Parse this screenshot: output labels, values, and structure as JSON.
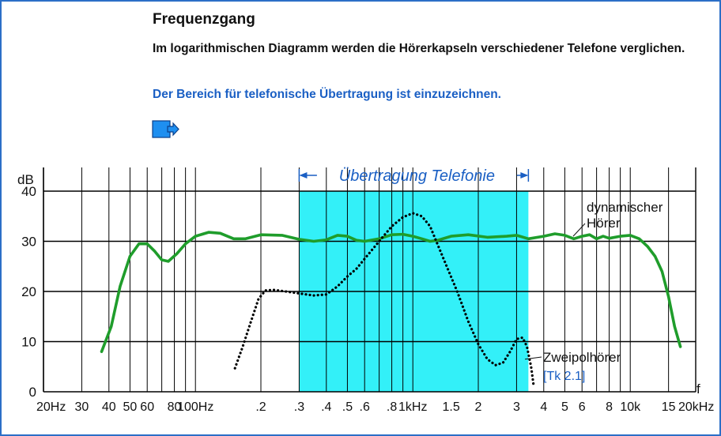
{
  "header": {
    "title": "Frequenzgang",
    "intro": "Im logarithmischen Diagramm werden die Hörerkapseln verschiedener Telefone verglichen.",
    "task": "Der Bereich für telefonische Übertragung ist einzuzeichnen."
  },
  "nav": {
    "next_icon": "arrow-right-icon"
  },
  "colors": {
    "band": "#33f0f8",
    "green": "#1f9d2b",
    "accent": "#1a5fc4",
    "grid": "#000000"
  },
  "chart_data": {
    "type": "line",
    "xscale": "log",
    "xlim": [
      20,
      20000
    ],
    "ylim": [
      0,
      40
    ],
    "yunit_label": "dB",
    "xunit_label": "f",
    "y_ticks": [
      {
        "v": 0,
        "label": "0"
      },
      {
        "v": 10,
        "label": "10"
      },
      {
        "v": 20,
        "label": "20"
      },
      {
        "v": 30,
        "label": "30"
      },
      {
        "v": 40,
        "label": "40"
      }
    ],
    "x_ticks": [
      {
        "f": 20,
        "label": "20Hz"
      },
      {
        "f": 30,
        "label": "30"
      },
      {
        "f": 40,
        "label": "40"
      },
      {
        "f": 50,
        "label": "50"
      },
      {
        "f": 60,
        "label": "60"
      },
      {
        "f": 80,
        "label": "80"
      },
      {
        "f": 100,
        "label": "100Hz"
      },
      {
        "f": 200,
        "label": ".2"
      },
      {
        "f": 300,
        "label": ".3"
      },
      {
        "f": 400,
        "label": ".4"
      },
      {
        "f": 500,
        "label": ".5"
      },
      {
        "f": 600,
        "label": ".6"
      },
      {
        "f": 800,
        "label": ".8"
      },
      {
        "f": 1000,
        "label": "1kHz"
      },
      {
        "f": 1500,
        "label": "1.5"
      },
      {
        "f": 2000,
        "label": "2"
      },
      {
        "f": 3000,
        "label": "3"
      },
      {
        "f": 4000,
        "label": "4"
      },
      {
        "f": 5000,
        "label": "5"
      },
      {
        "f": 6000,
        "label": "6"
      },
      {
        "f": 8000,
        "label": "8"
      },
      {
        "f": 10000,
        "label": "10k"
      },
      {
        "f": 15000,
        "label": "15"
      },
      {
        "f": 20000,
        "label": "20kHz"
      }
    ],
    "band": {
      "from": 300,
      "to": 3400,
      "label": "Übertragung Telefonie"
    },
    "series": [
      {
        "name": "dynamischer Hörer",
        "label_lines": [
          "dynamischer",
          "Hörer"
        ],
        "style": "solid",
        "color": "#1f9d2b",
        "points": [
          [
            37,
            8
          ],
          [
            41,
            13
          ],
          [
            45,
            21
          ],
          [
            50,
            27
          ],
          [
            55,
            29.5
          ],
          [
            60,
            29.5
          ],
          [
            65,
            28
          ],
          [
            70,
            26.3
          ],
          [
            75,
            26
          ],
          [
            82,
            27.5
          ],
          [
            90,
            29.5
          ],
          [
            100,
            31
          ],
          [
            115,
            31.8
          ],
          [
            130,
            31.6
          ],
          [
            150,
            30.5
          ],
          [
            170,
            30.5
          ],
          [
            200,
            31.3
          ],
          [
            250,
            31.2
          ],
          [
            300,
            30.4
          ],
          [
            350,
            30
          ],
          [
            400,
            30.3
          ],
          [
            450,
            31.2
          ],
          [
            500,
            31
          ],
          [
            550,
            30.2
          ],
          [
            600,
            30
          ],
          [
            700,
            30.5
          ],
          [
            800,
            31.3
          ],
          [
            900,
            31.4
          ],
          [
            1000,
            31
          ],
          [
            1100,
            30.5
          ],
          [
            1200,
            30
          ],
          [
            1300,
            30.2
          ],
          [
            1500,
            31
          ],
          [
            1800,
            31.3
          ],
          [
            2200,
            30.8
          ],
          [
            2700,
            31
          ],
          [
            3000,
            31.2
          ],
          [
            3400,
            30.5
          ],
          [
            4000,
            31
          ],
          [
            4500,
            31.5
          ],
          [
            5000,
            31.2
          ],
          [
            5500,
            30.5
          ],
          [
            6000,
            31
          ],
          [
            6500,
            31.3
          ],
          [
            7000,
            30.5
          ],
          [
            7500,
            31
          ],
          [
            8000,
            30.6
          ],
          [
            9000,
            31
          ],
          [
            10000,
            31.2
          ],
          [
            11000,
            30.5
          ],
          [
            12000,
            29
          ],
          [
            13000,
            27
          ],
          [
            14000,
            24
          ],
          [
            15000,
            19
          ],
          [
            16000,
            13
          ],
          [
            17000,
            9
          ]
        ]
      },
      {
        "name": "Zweipolhörer",
        "label_lines": [
          "Zweipolhörer"
        ],
        "ref": "[Tk 2.1]",
        "style": "dotted",
        "color": "#000000",
        "points": [
          [
            152,
            4.7
          ],
          [
            165,
            9
          ],
          [
            180,
            14
          ],
          [
            195,
            18.5
          ],
          [
            210,
            20.2
          ],
          [
            230,
            20.3
          ],
          [
            260,
            20
          ],
          [
            300,
            19.6
          ],
          [
            350,
            19.2
          ],
          [
            400,
            19.4
          ],
          [
            450,
            21
          ],
          [
            500,
            23
          ],
          [
            550,
            24.5
          ],
          [
            600,
            26.5
          ],
          [
            700,
            30
          ],
          [
            800,
            33
          ],
          [
            900,
            34.8
          ],
          [
            1000,
            35.6
          ],
          [
            1100,
            35
          ],
          [
            1200,
            33
          ],
          [
            1400,
            26
          ],
          [
            1600,
            20
          ],
          [
            1800,
            14
          ],
          [
            2000,
            9.5
          ],
          [
            2200,
            6.5
          ],
          [
            2400,
            5.3
          ],
          [
            2600,
            5.8
          ],
          [
            2800,
            8
          ],
          [
            3000,
            10.5
          ],
          [
            3200,
            10.8
          ],
          [
            3350,
            9
          ],
          [
            3500,
            5
          ],
          [
            3600,
            1
          ]
        ]
      }
    ]
  }
}
